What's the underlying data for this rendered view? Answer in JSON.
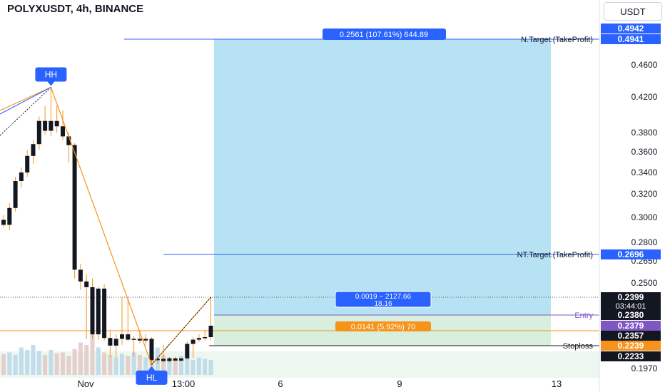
{
  "header": {
    "title": "POLYXUSDT, 4h, BINANCE",
    "currency": "USDT"
  },
  "colors": {
    "up": "#26a69a",
    "candle_body": "#131722",
    "target": "#2962ff",
    "stop": "#f7931a",
    "entry": "#7e57c2",
    "profit_zone": "#b3e0f2",
    "loss_zone": "#d7eedc"
  },
  "chart_data": {
    "type": "candlestick",
    "symbol": "POLYXUSDT",
    "interval": "4h",
    "exchange": "BINANCE",
    "x_tick_labels": [
      "Nov",
      "13:00",
      "6",
      "9",
      "13"
    ],
    "y_tick_labels": [
      "0.4600",
      "0.4200",
      "0.3800",
      "0.3600",
      "0.3400",
      "0.3200",
      "0.3000",
      "0.2800",
      "0.2650",
      "0.2500",
      "0.1970"
    ],
    "candles": [
      [
        0.298,
        0.302,
        0.292,
        0.294
      ],
      [
        0.294,
        0.312,
        0.29,
        0.308
      ],
      [
        0.308,
        0.336,
        0.305,
        0.332
      ],
      [
        0.332,
        0.345,
        0.326,
        0.34
      ],
      [
        0.34,
        0.362,
        0.336,
        0.356
      ],
      [
        0.356,
        0.372,
        0.348,
        0.368
      ],
      [
        0.368,
        0.398,
        0.362,
        0.393
      ],
      [
        0.393,
        0.41,
        0.378,
        0.382
      ],
      [
        0.382,
        0.432,
        0.376,
        0.393
      ],
      [
        0.393,
        0.41,
        0.38,
        0.387
      ],
      [
        0.387,
        0.405,
        0.372,
        0.376
      ],
      [
        0.376,
        0.38,
        0.35,
        0.367
      ],
      [
        0.367,
        0.369,
        0.253,
        0.259
      ],
      [
        0.259,
        0.263,
        0.245,
        0.251
      ],
      [
        0.251,
        0.256,
        0.232,
        0.247
      ],
      [
        0.247,
        0.253,
        0.232,
        0.236
      ],
      [
        0.236,
        0.247,
        0.231,
        0.246
      ],
      [
        0.246,
        0.249,
        0.23,
        0.233
      ],
      [
        0.233,
        0.237,
        0.222,
        0.224
      ],
      [
        0.224,
        0.236,
        0.221,
        0.232
      ],
      [
        0.232,
        0.24,
        0.225,
        0.236
      ],
      [
        0.236,
        0.24,
        0.229,
        0.231
      ],
      [
        0.231,
        0.235,
        0.222,
        0.232
      ],
      [
        0.232,
        0.237,
        0.227,
        0.23
      ],
      [
        0.23,
        0.236,
        0.225,
        0.232
      ],
      [
        0.232,
        0.234,
        0.205,
        0.215
      ],
      [
        0.215,
        0.222,
        0.208,
        0.218
      ],
      [
        0.218,
        0.225,
        0.21,
        0.213
      ],
      [
        0.213,
        0.222,
        0.21,
        0.219
      ],
      [
        0.219,
        0.222,
        0.212,
        0.214
      ],
      [
        0.214,
        0.219,
        0.212,
        0.219
      ],
      [
        0.219,
        0.229,
        0.215,
        0.226
      ],
      [
        0.226,
        0.234,
        0.22,
        0.231
      ],
      [
        0.231,
        0.236,
        0.228,
        0.233
      ],
      [
        0.233,
        0.237,
        0.23,
        0.234
      ],
      [
        0.234,
        0.24,
        0.231,
        0.2379
      ]
    ],
    "volume": [
      0.42,
      0.45,
      0.4,
      0.55,
      0.5,
      0.6,
      0.48,
      0.4,
      0.5,
      0.43,
      0.45,
      0.38,
      0.52,
      0.65,
      0.6,
      0.95,
      0.55,
      0.45,
      0.4,
      0.35,
      0.42,
      0.38,
      0.45,
      0.4,
      0.35,
      0.5,
      0.55,
      0.4,
      0.35,
      0.3,
      0.38,
      0.33,
      0.3,
      0.35,
      0.32,
      0.3
    ],
    "pattern_labels": {
      "high": "HH",
      "low": "HL"
    },
    "position": {
      "entry": 0.238,
      "stop": 0.2239,
      "target1": 0.2696,
      "target2": 0.4941,
      "entry_label": "Entry",
      "stop_label": "Stoploss",
      "target1_label": "NT.Target.(TakeProfit)",
      "target2_label": "N.Target.(TakeProfit)",
      "target_stats": "0.2561 (107.61%) 644.89",
      "entry_stats_1": "0.0019 ~ 2127.66",
      "entry_stats_2": "18.16",
      "stop_stats": "0.0141 (5.92%) 70"
    },
    "price_tags": [
      {
        "value": "0.4942",
        "bg": "#2962ff",
        "fg": "#ffffff"
      },
      {
        "value": "0.4941",
        "bg": "#2962ff",
        "fg": "#ffffff"
      },
      {
        "value": "0.2696",
        "bg": "#2962ff",
        "fg": "#ffffff"
      },
      {
        "value": "0.2399",
        "bg": "#131722",
        "fg": "#ffffff",
        "sub": "03:44:01"
      },
      {
        "value": "0.2380",
        "bg": "#131722",
        "fg": "#ffffff"
      },
      {
        "value": "0.2379",
        "bg": "#7e57c2",
        "fg": "#ffffff"
      },
      {
        "value": "0.2357",
        "bg": "#131722",
        "fg": "#ffffff"
      },
      {
        "value": "0.2239",
        "bg": "#f7931a",
        "fg": "#ffffff"
      },
      {
        "value": "0.2233",
        "bg": "#131722",
        "fg": "#ffffff"
      }
    ]
  }
}
